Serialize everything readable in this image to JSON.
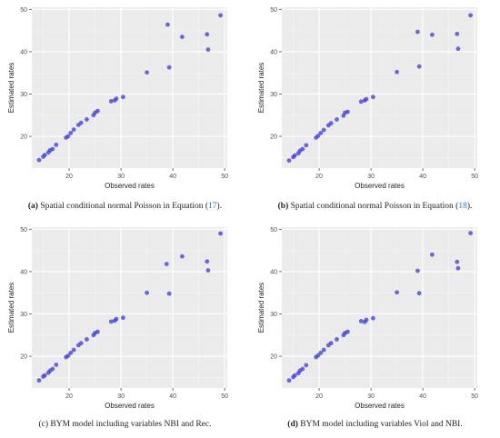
{
  "figure": {
    "panels": [
      {
        "caption": {
          "tag": "(a)",
          "text": " Spatial conditional normal Poisson in Equation (",
          "ref": "17",
          "end": ")."
        }
      },
      {
        "caption": {
          "tag": "(b)",
          "text": " Spatial conditional normal Poisson in Equation (",
          "ref": "18",
          "end": ")."
        }
      },
      {
        "caption": {
          "tag": "",
          "text": "(c) BYM model including variables NBI and Rec.",
          "ref": "",
          "end": ""
        }
      },
      {
        "caption": {
          "tag": "(d)",
          "text": " BYM model including variables Viol and NBI.",
          "ref": "",
          "end": ""
        }
      }
    ]
  },
  "chart_data": [
    {
      "type": "scatter",
      "xlabel": "Observed rates",
      "ylabel": "Estimated rates",
      "xlim": [
        12.8,
        50.5
      ],
      "ylim": [
        12.5,
        50.5
      ],
      "xticks": [
        20,
        30,
        40,
        50
      ],
      "yticks": [
        20,
        30,
        40,
        50
      ],
      "grid": true,
      "point_color": "#3b3bd6",
      "panel_background": "#ebebeb",
      "x": [
        14.2,
        15.0,
        15.3,
        16.0,
        16.3,
        16.8,
        17.5,
        19.4,
        19.8,
        20.3,
        20.9,
        21.8,
        22.3,
        23.4,
        24.7,
        25.0,
        25.5,
        28.1,
        28.8,
        29.1,
        30.4,
        35.0,
        39.0,
        39.3,
        41.8,
        46.6,
        46.8,
        49.2
      ],
      "y": [
        14.4,
        15.2,
        15.6,
        16.2,
        16.7,
        17.0,
        18.0,
        19.7,
        20.0,
        20.8,
        21.6,
        22.7,
        23.2,
        24.0,
        25.0,
        25.6,
        26.0,
        28.3,
        28.5,
        28.9,
        29.3,
        35.1,
        46.4,
        36.3,
        43.5,
        44.1,
        40.5,
        48.6
      ]
    },
    {
      "type": "scatter",
      "xlabel": "Observed rates",
      "ylabel": "Estimated rates",
      "xlim": [
        12.8,
        50.5
      ],
      "ylim": [
        12.5,
        50.5
      ],
      "xticks": [
        20,
        30,
        40,
        50
      ],
      "yticks": [
        20,
        30,
        40,
        50
      ],
      "grid": true,
      "point_color": "#3b3bd6",
      "panel_background": "#ebebeb",
      "x": [
        14.2,
        15.0,
        15.3,
        16.0,
        16.3,
        16.8,
        17.5,
        19.4,
        19.8,
        20.3,
        20.9,
        21.8,
        22.3,
        23.4,
        24.7,
        25.0,
        25.5,
        28.1,
        28.8,
        29.1,
        30.4,
        35.0,
        39.0,
        39.3,
        41.8,
        46.6,
        46.8,
        49.2
      ],
      "y": [
        14.3,
        15.1,
        15.5,
        16.0,
        16.6,
        17.0,
        17.9,
        19.7,
        20.1,
        20.8,
        21.5,
        22.6,
        23.1,
        24.0,
        24.9,
        25.6,
        25.8,
        28.2,
        28.5,
        28.8,
        29.3,
        35.2,
        44.7,
        36.5,
        44.0,
        44.2,
        40.7,
        48.6
      ]
    },
    {
      "type": "scatter",
      "xlabel": "Observed rates",
      "ylabel": "Estimated rates",
      "xlim": [
        12.8,
        50.5
      ],
      "ylim": [
        12.5,
        50.5
      ],
      "xticks": [
        20,
        30,
        40,
        50
      ],
      "yticks": [
        20,
        30,
        40,
        50
      ],
      "grid": true,
      "point_color": "#3b3bd6",
      "panel_background": "#ebebeb",
      "x": [
        14.2,
        15.0,
        15.3,
        16.0,
        16.3,
        16.8,
        17.5,
        19.4,
        19.8,
        20.3,
        20.9,
        21.8,
        22.3,
        23.4,
        24.7,
        25.0,
        25.5,
        28.1,
        28.8,
        29.1,
        30.4,
        35.0,
        38.8,
        39.3,
        41.8,
        46.6,
        46.8,
        49.2
      ],
      "y": [
        14.3,
        15.2,
        15.5,
        16.1,
        16.6,
        17.0,
        18.0,
        19.8,
        20.1,
        20.8,
        21.5,
        22.6,
        23.1,
        24.0,
        25.0,
        25.5,
        25.8,
        28.2,
        28.4,
        28.8,
        29.1,
        35.0,
        41.8,
        34.8,
        43.6,
        42.4,
        40.3,
        49.0
      ]
    },
    {
      "type": "scatter",
      "xlabel": "Observed rates",
      "ylabel": "Estimated rates",
      "xlim": [
        12.8,
        50.5
      ],
      "ylim": [
        12.5,
        50.5
      ],
      "xticks": [
        20,
        30,
        40,
        50
      ],
      "yticks": [
        20,
        30,
        40,
        50
      ],
      "grid": true,
      "point_color": "#3b3bd6",
      "panel_background": "#ebebeb",
      "x": [
        14.2,
        15.0,
        15.3,
        16.0,
        16.3,
        16.8,
        17.5,
        19.4,
        19.8,
        20.3,
        20.9,
        21.8,
        22.3,
        23.4,
        24.7,
        25.0,
        25.5,
        28.1,
        28.8,
        29.1,
        30.4,
        35.0,
        39.0,
        39.3,
        41.8,
        46.6,
        46.8,
        49.2
      ],
      "y": [
        14.3,
        15.1,
        15.5,
        16.0,
        16.6,
        17.0,
        17.9,
        19.8,
        20.2,
        20.8,
        21.5,
        22.6,
        23.1,
        24.0,
        25.0,
        25.5,
        25.8,
        28.3,
        28.1,
        28.6,
        29.0,
        35.1,
        40.2,
        34.9,
        44.0,
        42.3,
        40.8,
        49.1
      ]
    }
  ]
}
